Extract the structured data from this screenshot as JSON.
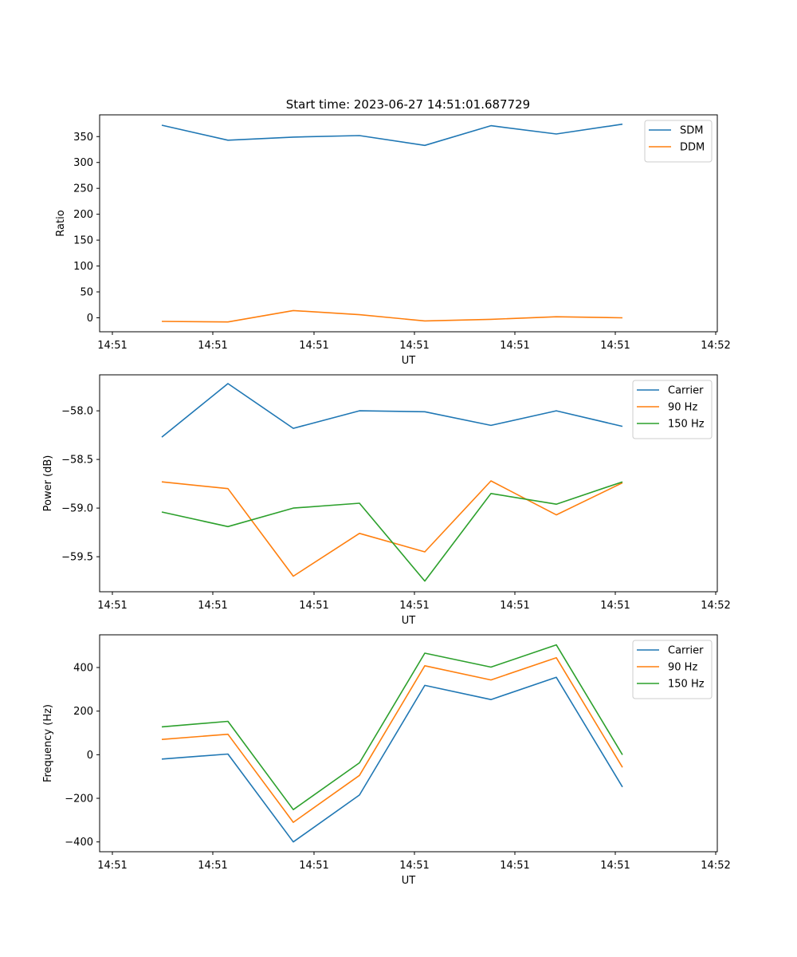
{
  "figure": {
    "title": "Start time: 2023-06-27 14:51:01.687729"
  },
  "chart_data": [
    {
      "type": "line",
      "title": "Start time: 2023-06-27 14:51:01.687729",
      "xlabel": "UT",
      "ylabel": "Ratio",
      "x_tick_labels": [
        "14:51",
        "14:51",
        "14:51",
        "14:51",
        "14:51",
        "14:51",
        "14:52"
      ],
      "y_ticks": [
        0,
        50,
        100,
        150,
        200,
        250,
        300,
        350
      ],
      "ylim": [
        -27,
        392
      ],
      "legend_position": "top-right",
      "grid": false,
      "series": [
        {
          "name": "SDM",
          "color": "#1f77b4",
          "values": [
            372,
            343,
            349,
            352,
            333,
            371,
            355,
            374
          ]
        },
        {
          "name": "DDM",
          "color": "#ff7f0e",
          "values": [
            -7,
            -8,
            14,
            6,
            -6,
            -3,
            2,
            0
          ]
        }
      ]
    },
    {
      "type": "line",
      "xlabel": "UT",
      "ylabel": "Power (dB)",
      "x_tick_labels": [
        "14:51",
        "14:51",
        "14:51",
        "14:51",
        "14:51",
        "14:51",
        "14:52"
      ],
      "y_ticks": [
        -58.0,
        -58.5,
        -59.0,
        -59.5
      ],
      "y_tick_labels": [
        "−58.0",
        "−58.5",
        "−59.0",
        "−59.5"
      ],
      "ylim": [
        -59.86,
        -57.63
      ],
      "legend_position": "top-right",
      "grid": false,
      "series": [
        {
          "name": "Carrier",
          "color": "#1f77b4",
          "values": [
            -58.27,
            -57.72,
            -58.18,
            -58.0,
            -58.01,
            -58.15,
            -58.0,
            -58.16
          ]
        },
        {
          "name": "90 Hz",
          "color": "#ff7f0e",
          "values": [
            -58.73,
            -58.8,
            -59.7,
            -59.26,
            -59.45,
            -58.72,
            -59.07,
            -58.74
          ]
        },
        {
          "name": "150 Hz",
          "color": "#2ca02c",
          "values": [
            -59.04,
            -59.19,
            -59.0,
            -58.95,
            -59.75,
            -58.85,
            -58.96,
            -58.73
          ]
        }
      ]
    },
    {
      "type": "line",
      "xlabel": "UT",
      "ylabel": "Frequency (Hz)",
      "x_tick_labels": [
        "14:51",
        "14:51",
        "14:51",
        "14:51",
        "14:51",
        "14:51",
        "14:52"
      ],
      "y_ticks": [
        -400,
        -200,
        0,
        200,
        400
      ],
      "y_tick_labels": [
        "−400",
        "−200",
        "0",
        "200",
        "400"
      ],
      "ylim": [
        -445,
        550
      ],
      "legend_position": "top-right",
      "grid": false,
      "series": [
        {
          "name": "Carrier",
          "color": "#1f77b4",
          "values": [
            -20,
            3,
            -400,
            -185,
            318,
            253,
            355,
            -148
          ]
        },
        {
          "name": "90 Hz",
          "color": "#ff7f0e",
          "values": [
            70,
            94,
            -310,
            -95,
            408,
            343,
            445,
            -58
          ]
        },
        {
          "name": "150 Hz",
          "color": "#2ca02c",
          "values": [
            128,
            153,
            -252,
            -37,
            466,
            402,
            504,
            0
          ]
        }
      ]
    }
  ]
}
